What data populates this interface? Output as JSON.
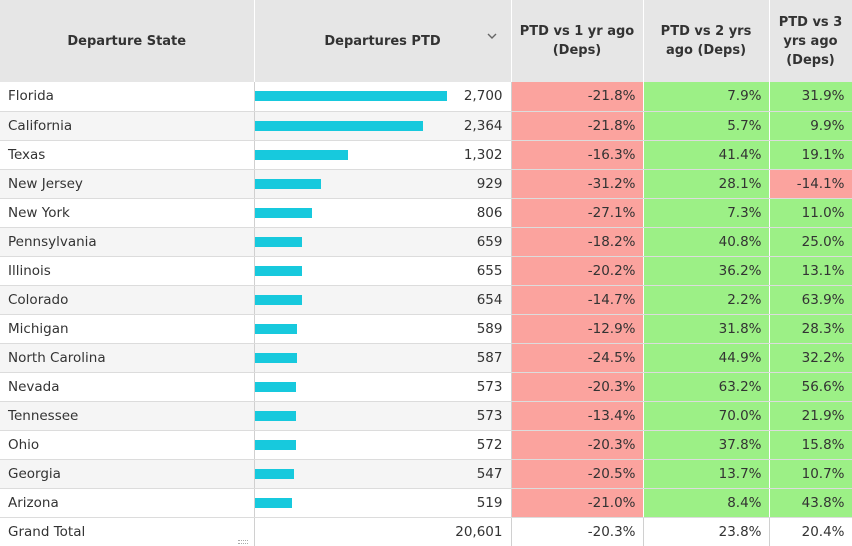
{
  "headers": {
    "state": "Departure State",
    "deps": "Departures PTD",
    "yr1": "PTD vs 1 yr ago (Deps)",
    "yr2": "PTD vs 2 yrs ago (Deps)",
    "yr3": "PTD vs 3 yrs ago (Deps)"
  },
  "sort_icon": "chevron-down-icon",
  "bar_max": 2700,
  "colors": {
    "bar": "#17c9dd",
    "negative": "#fba39e",
    "positive": "#9cf086"
  },
  "rows": [
    {
      "state": "Florida",
      "deps": "2,700",
      "deps_value": 2700,
      "yr1": "-21.8%",
      "yr2": "7.9%",
      "yr3": "31.9%"
    },
    {
      "state": "California",
      "deps": "2,364",
      "deps_value": 2364,
      "yr1": "-21.8%",
      "yr2": "5.7%",
      "yr3": "9.9%"
    },
    {
      "state": "Texas",
      "deps": "1,302",
      "deps_value": 1302,
      "yr1": "-16.3%",
      "yr2": "41.4%",
      "yr3": "19.1%"
    },
    {
      "state": "New Jersey",
      "deps": "929",
      "deps_value": 929,
      "yr1": "-31.2%",
      "yr2": "28.1%",
      "yr3": "-14.1%"
    },
    {
      "state": "New York",
      "deps": "806",
      "deps_value": 806,
      "yr1": "-27.1%",
      "yr2": "7.3%",
      "yr3": "11.0%"
    },
    {
      "state": "Pennsylvania",
      "deps": "659",
      "deps_value": 659,
      "yr1": "-18.2%",
      "yr2": "40.8%",
      "yr3": "25.0%"
    },
    {
      "state": "Illinois",
      "deps": "655",
      "deps_value": 655,
      "yr1": "-20.2%",
      "yr2": "36.2%",
      "yr3": "13.1%"
    },
    {
      "state": "Colorado",
      "deps": "654",
      "deps_value": 654,
      "yr1": "-14.7%",
      "yr2": "2.2%",
      "yr3": "63.9%"
    },
    {
      "state": "Michigan",
      "deps": "589",
      "deps_value": 589,
      "yr1": "-12.9%",
      "yr2": "31.8%",
      "yr3": "28.3%"
    },
    {
      "state": "North Carolina",
      "deps": "587",
      "deps_value": 587,
      "yr1": "-24.5%",
      "yr2": "44.9%",
      "yr3": "32.2%"
    },
    {
      "state": "Nevada",
      "deps": "573",
      "deps_value": 573,
      "yr1": "-20.3%",
      "yr2": "63.2%",
      "yr3": "56.6%"
    },
    {
      "state": "Tennessee",
      "deps": "573",
      "deps_value": 573,
      "yr1": "-13.4%",
      "yr2": "70.0%",
      "yr3": "21.9%"
    },
    {
      "state": "Ohio",
      "deps": "572",
      "deps_value": 572,
      "yr1": "-20.3%",
      "yr2": "37.8%",
      "yr3": "15.8%"
    },
    {
      "state": "Georgia",
      "deps": "547",
      "deps_value": 547,
      "yr1": "-20.5%",
      "yr2": "13.7%",
      "yr3": "10.7%"
    },
    {
      "state": "Arizona",
      "deps": "519",
      "deps_value": 519,
      "yr1": "-21.0%",
      "yr2": "8.4%",
      "yr3": "43.8%"
    }
  ],
  "total": {
    "state": "Grand Total",
    "deps": "20,601",
    "yr1": "-20.3%",
    "yr2": "23.8%",
    "yr3": "20.4%"
  }
}
